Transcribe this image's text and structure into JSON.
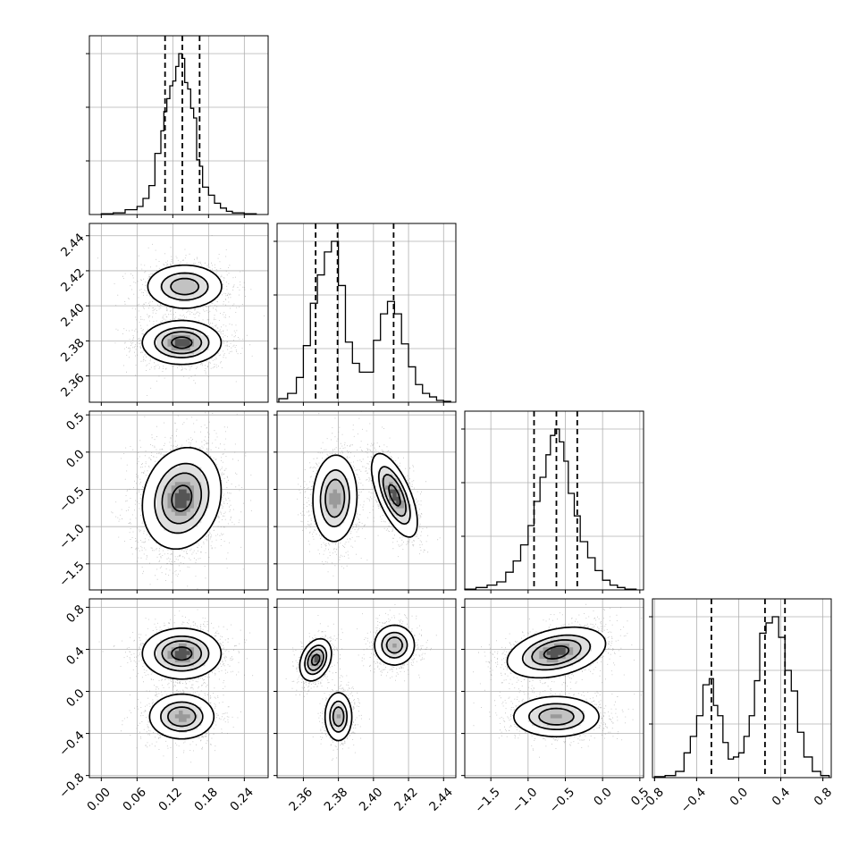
{
  "chart_data": {
    "type": "corner",
    "grid": true,
    "quantile_lines": "dashed",
    "parameters": [
      {
        "range": [
          -0.02,
          0.28
        ],
        "ticks": [
          0.0,
          0.06,
          0.12,
          0.18,
          0.24
        ],
        "tick_labels": [
          "0.00",
          "0.06",
          "0.12",
          "0.18",
          "0.24"
        ],
        "quantiles": [
          0.107,
          0.136,
          0.165
        ],
        "histogram": {
          "bins": [
            0.0,
            0.02,
            0.04,
            0.06,
            0.07,
            0.08,
            0.09,
            0.1,
            0.105,
            0.11,
            0.115,
            0.12,
            0.125,
            0.13,
            0.135,
            0.14,
            0.145,
            0.15,
            0.155,
            0.16,
            0.165,
            0.17,
            0.18,
            0.19,
            0.2,
            0.21,
            0.22,
            0.24,
            0.26
          ],
          "heights": [
            0.005,
            0.01,
            0.03,
            0.05,
            0.1,
            0.18,
            0.38,
            0.52,
            0.64,
            0.72,
            0.8,
            0.83,
            0.92,
            1.0,
            0.97,
            0.82,
            0.78,
            0.66,
            0.6,
            0.34,
            0.3,
            0.17,
            0.12,
            0.07,
            0.04,
            0.02,
            0.01,
            0.005
          ]
        }
      },
      {
        "range": [
          2.345,
          2.447
        ],
        "ticks": [
          2.36,
          2.38,
          2.4,
          2.42,
          2.44
        ],
        "tick_labels": [
          "2.36",
          "2.38",
          "2.40",
          "2.42",
          "2.44"
        ],
        "quantiles": [
          2.367,
          2.3795,
          2.4115
        ],
        "histogram": {
          "bins": [
            2.346,
            2.351,
            2.356,
            2.36,
            2.364,
            2.368,
            2.372,
            2.376,
            2.38,
            2.384,
            2.388,
            2.392,
            2.396,
            2.4,
            2.404,
            2.408,
            2.412,
            2.416,
            2.42,
            2.424,
            2.428,
            2.432,
            2.436,
            2.44,
            2.444
          ],
          "heights": [
            0.02,
            0.05,
            0.14,
            0.32,
            0.56,
            0.72,
            0.85,
            0.91,
            0.66,
            0.34,
            0.22,
            0.17,
            0.17,
            0.35,
            0.5,
            0.57,
            0.5,
            0.33,
            0.2,
            0.1,
            0.05,
            0.03,
            0.01,
            0.005
          ]
        }
      },
      {
        "range": [
          -1.85,
          0.55
        ],
        "ticks": [
          -1.5,
          -1.0,
          -0.5,
          0.0,
          0.5
        ],
        "tick_labels": [
          "−1.5",
          "−1.0",
          "−0.5",
          "0.0",
          "0.5"
        ],
        "quantiles": [
          -0.92,
          -0.62,
          -0.34
        ],
        "histogram": {
          "bins": [
            -1.85,
            -1.7,
            -1.55,
            -1.42,
            -1.3,
            -1.2,
            -1.1,
            -1.0,
            -0.92,
            -0.84,
            -0.76,
            -0.7,
            -0.64,
            -0.58,
            -0.52,
            -0.46,
            -0.38,
            -0.3,
            -0.2,
            -0.1,
            0.0,
            0.1,
            0.2,
            0.3,
            0.45
          ],
          "heights": [
            0.005,
            0.015,
            0.03,
            0.05,
            0.11,
            0.18,
            0.28,
            0.4,
            0.55,
            0.7,
            0.84,
            0.96,
            1.0,
            0.92,
            0.8,
            0.6,
            0.46,
            0.3,
            0.2,
            0.12,
            0.06,
            0.03,
            0.015,
            0.005
          ]
        }
      },
      {
        "range": [
          -0.82,
          0.88
        ],
        "ticks": [
          -0.8,
          -0.4,
          0.0,
          0.4,
          0.8
        ],
        "tick_labels": [
          "−0.8",
          "−0.4",
          "0.0",
          "0.4",
          "0.8"
        ],
        "quantiles": [
          -0.26,
          0.25,
          0.44
        ],
        "histogram": {
          "bins": [
            -0.8,
            -0.7,
            -0.6,
            -0.52,
            -0.46,
            -0.4,
            -0.34,
            -0.28,
            -0.24,
            -0.2,
            -0.15,
            -0.1,
            -0.05,
            0.0,
            0.05,
            0.1,
            0.15,
            0.2,
            0.26,
            0.32,
            0.38,
            0.44,
            0.5,
            0.56,
            0.62,
            0.7,
            0.78,
            0.86
          ],
          "heights": [
            0.005,
            0.01,
            0.03,
            0.12,
            0.2,
            0.3,
            0.45,
            0.48,
            0.35,
            0.3,
            0.17,
            0.09,
            0.1,
            0.12,
            0.2,
            0.3,
            0.47,
            0.7,
            0.75,
            0.78,
            0.68,
            0.52,
            0.42,
            0.22,
            0.1,
            0.03,
            0.01
          ]
        }
      }
    ],
    "pairs": [
      {
        "row": 1,
        "col": 0,
        "modes": [
          {
            "x": 0.14,
            "y": 2.411,
            "sx": 0.033,
            "sy": 0.0065,
            "r": 0.0,
            "w": 0.45
          },
          {
            "x": 0.135,
            "y": 2.379,
            "sx": 0.033,
            "sy": 0.0062,
            "r": 0.0,
            "w": 0.55
          }
        ]
      },
      {
        "row": 2,
        "col": 0,
        "modes": [
          {
            "x": 0.135,
            "y": -0.62,
            "sx": 0.033,
            "sy": 0.34,
            "r": 0.15,
            "w": 1.0
          }
        ]
      },
      {
        "row": 2,
        "col": 1,
        "modes": [
          {
            "x": 2.378,
            "y": -0.62,
            "sx": 0.0065,
            "sy": 0.3,
            "r": 0.05,
            "w": 0.55
          },
          {
            "x": 2.412,
            "y": -0.58,
            "sx": 0.0065,
            "sy": 0.28,
            "r": -0.65,
            "w": 0.45
          }
        ]
      },
      {
        "row": 3,
        "col": 0,
        "modes": [
          {
            "x": 0.135,
            "y": 0.36,
            "sx": 0.033,
            "sy": 0.12,
            "r": 0.0,
            "w": 0.6
          },
          {
            "x": 0.135,
            "y": -0.24,
            "sx": 0.028,
            "sy": 0.11,
            "r": 0.0,
            "w": 0.4
          }
        ]
      },
      {
        "row": 3,
        "col": 1,
        "modes": [
          {
            "x": 2.367,
            "y": 0.3,
            "sx": 0.0045,
            "sy": 0.1,
            "r": 0.3,
            "w": 0.33
          },
          {
            "x": 2.38,
            "y": -0.24,
            "sx": 0.004,
            "sy": 0.12,
            "r": 0.0,
            "w": 0.3
          },
          {
            "x": 2.412,
            "y": 0.44,
            "sx": 0.006,
            "sy": 0.1,
            "r": 0.0,
            "w": 0.37
          }
        ]
      },
      {
        "row": 3,
        "col": 2,
        "modes": [
          {
            "x": -0.62,
            "y": 0.37,
            "sx": 0.33,
            "sy": 0.12,
            "r": 0.35,
            "w": 0.6
          },
          {
            "x": -0.62,
            "y": -0.24,
            "sx": 0.3,
            "sy": 0.1,
            "r": 0.0,
            "w": 0.4
          }
        ]
      }
    ]
  }
}
